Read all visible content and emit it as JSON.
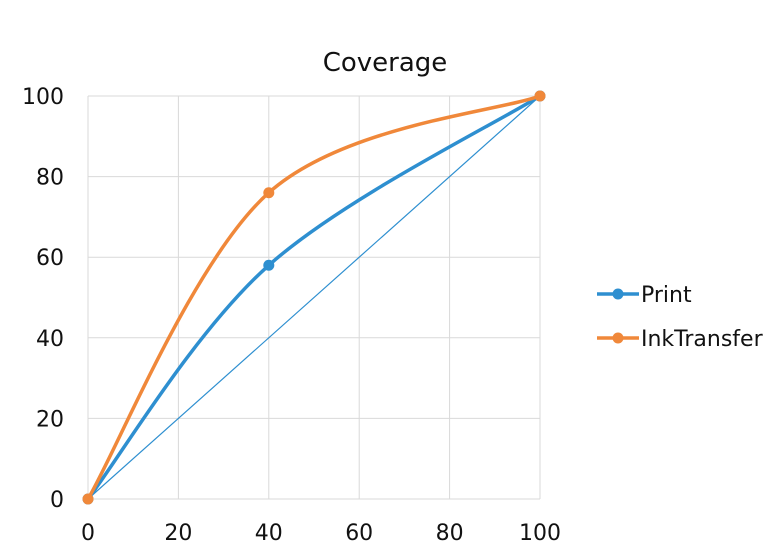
{
  "chart_data": {
    "type": "line",
    "title": "Coverage",
    "xlabel": "",
    "ylabel": "",
    "xlim": [
      0,
      100
    ],
    "ylim": [
      0,
      100
    ],
    "x_ticks": [
      0,
      20,
      40,
      60,
      80,
      100
    ],
    "y_ticks": [
      0,
      20,
      40,
      60,
      80,
      100
    ],
    "grid": true,
    "legend_position": "right",
    "series": [
      {
        "name": "Print",
        "color": "#2e8fd0",
        "smooth": true,
        "x": [
          0,
          40,
          100
        ],
        "y": [
          0,
          58,
          100
        ]
      },
      {
        "name": "InkTransfer",
        "color": "#f0883a",
        "smooth": true,
        "x": [
          0,
          40,
          100
        ],
        "y": [
          0,
          76,
          100
        ]
      }
    ],
    "reference_line": {
      "color": "#2e8fd0",
      "x": [
        0,
        100
      ],
      "y": [
        0,
        100
      ]
    }
  }
}
